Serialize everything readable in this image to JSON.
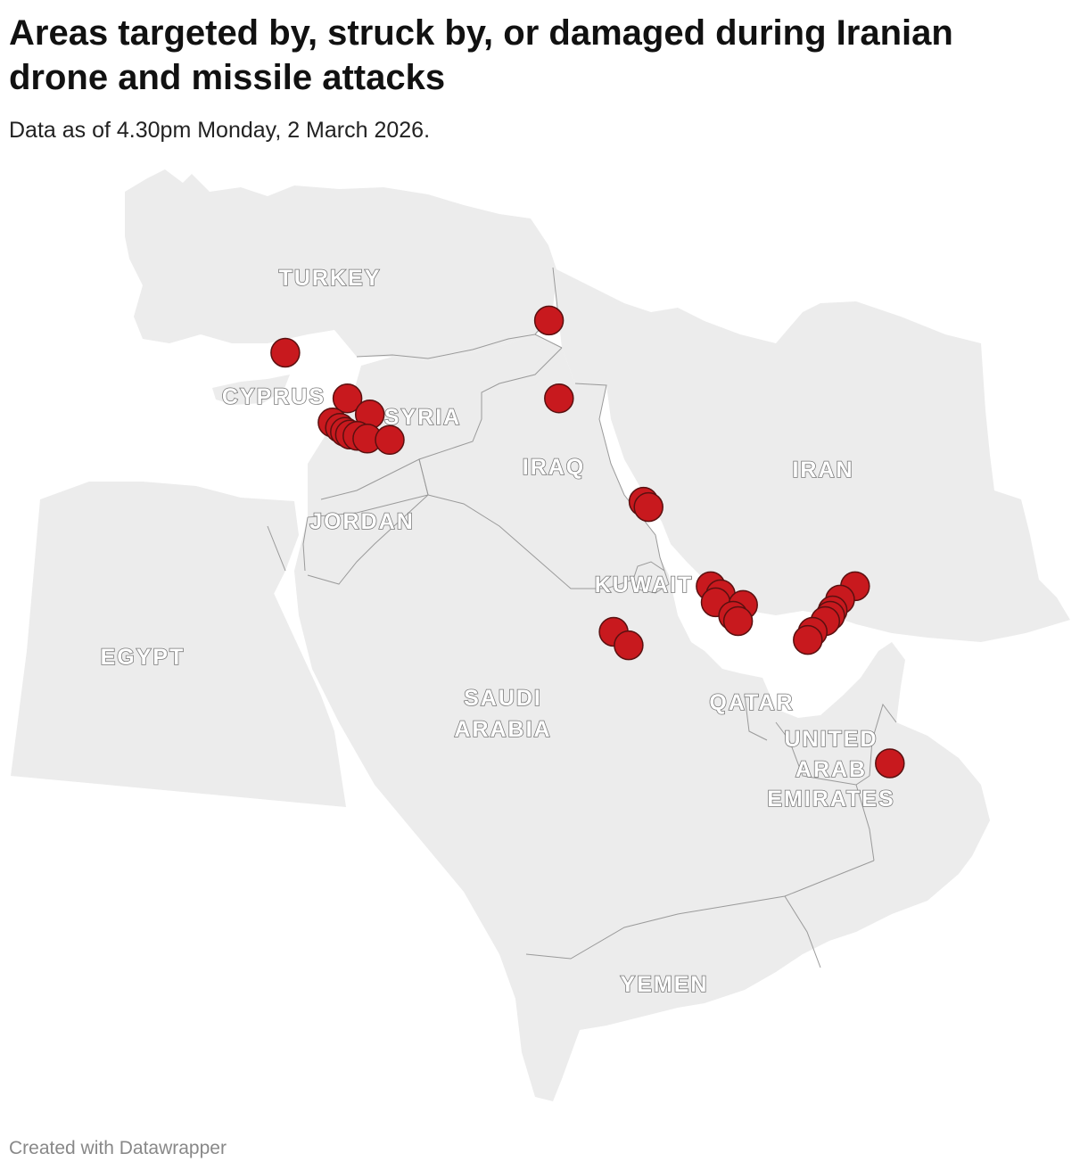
{
  "header": {
    "title": "Areas targeted by, struck by, or damaged during Iranian drone and missile attacks",
    "subtitle": "Data as of 4.30pm Monday, 2 March 2026."
  },
  "footer": {
    "credit": "Created with Datawrapper"
  },
  "colors": {
    "land": "#ececec",
    "border": "#9a9a9a",
    "marker": "#c8191e",
    "label_stroke": "#7a7a7a"
  },
  "map": {
    "labels": {
      "turkey": "TURKEY",
      "cyprus": "CYPRUS",
      "syria": "SYRIA",
      "iraq": "IRAQ",
      "iran": "IRAN",
      "jordan": "JORDAN",
      "kuwait": "KUWAIT",
      "egypt": "EGYPT",
      "saudi_1": "SAUDI",
      "saudi_2": "ARABIA",
      "qatar": "QATAR",
      "uae_1": "UNITED",
      "uae_2": "ARAB",
      "uae_3": "EMIRATES",
      "yemen": "YEMEN"
    },
    "points": [
      {
        "lon": 44.0,
        "lat": 36.2
      },
      {
        "lon": 33.4,
        "lat": 35.0
      },
      {
        "lon": 44.4,
        "lat": 33.3
      },
      {
        "lon": 35.9,
        "lat": 33.3
      },
      {
        "lon": 36.8,
        "lat": 32.7
      },
      {
        "lon": 35.3,
        "lat": 32.4
      },
      {
        "lon": 35.6,
        "lat": 32.2
      },
      {
        "lon": 35.8,
        "lat": 32.05
      },
      {
        "lon": 36.0,
        "lat": 31.95
      },
      {
        "lon": 36.3,
        "lat": 31.9
      },
      {
        "lon": 36.7,
        "lat": 31.8
      },
      {
        "lon": 37.6,
        "lat": 31.75
      },
      {
        "lon": 47.8,
        "lat": 29.45
      },
      {
        "lon": 48.0,
        "lat": 29.25
      },
      {
        "lon": 50.5,
        "lat": 26.3
      },
      {
        "lon": 50.9,
        "lat": 26.0
      },
      {
        "lon": 50.7,
        "lat": 25.7
      },
      {
        "lon": 51.8,
        "lat": 25.6
      },
      {
        "lon": 51.4,
        "lat": 25.2
      },
      {
        "lon": 51.6,
        "lat": 25.0
      },
      {
        "lon": 46.6,
        "lat": 24.6
      },
      {
        "lon": 47.2,
        "lat": 24.1
      },
      {
        "lon": 56.3,
        "lat": 26.3
      },
      {
        "lon": 55.7,
        "lat": 25.8
      },
      {
        "lon": 55.4,
        "lat": 25.4
      },
      {
        "lon": 55.3,
        "lat": 25.2
      },
      {
        "lon": 55.1,
        "lat": 25.0
      },
      {
        "lon": 54.6,
        "lat": 24.6
      },
      {
        "lon": 54.4,
        "lat": 24.3
      },
      {
        "lon": 57.7,
        "lat": 19.7
      }
    ]
  }
}
